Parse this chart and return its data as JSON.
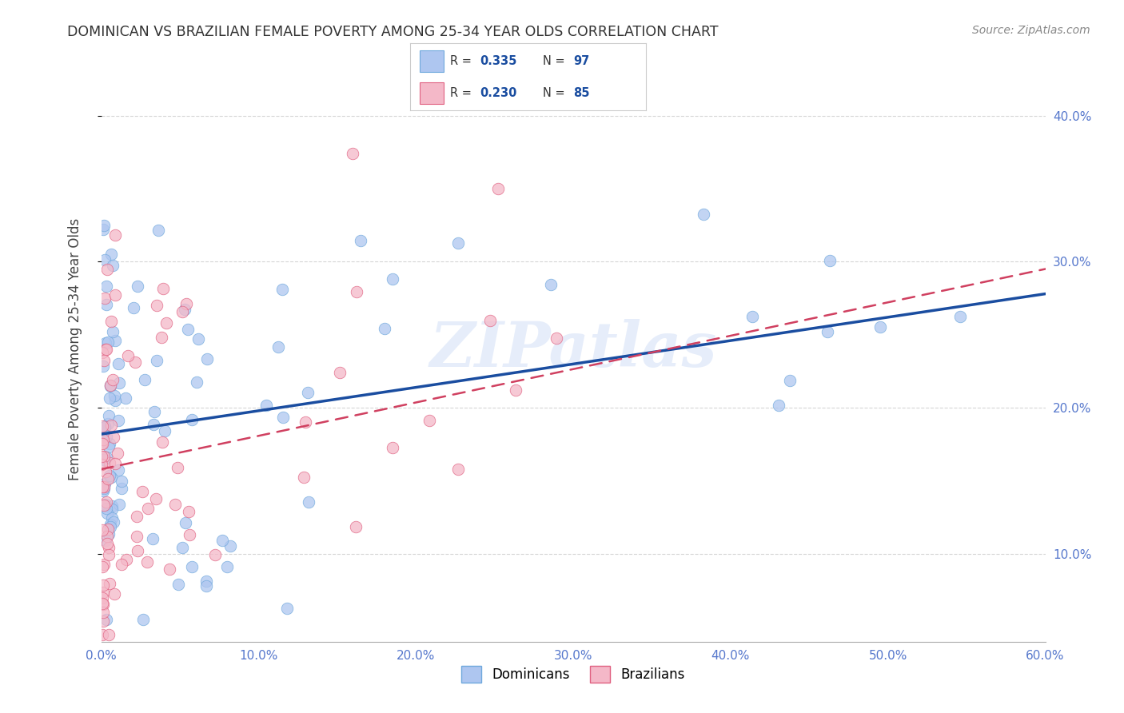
{
  "title": "DOMINICAN VS BRAZILIAN FEMALE POVERTY AMONG 25-34 YEAR OLDS CORRELATION CHART",
  "source": "Source: ZipAtlas.com",
  "ylabel": "Female Poverty Among 25-34 Year Olds",
  "xlim": [
    0.0,
    0.6
  ],
  "ylim": [
    0.04,
    0.44
  ],
  "xticks": [
    0.0,
    0.1,
    0.2,
    0.3,
    0.4,
    0.5,
    0.6
  ],
  "yticks": [
    0.1,
    0.2,
    0.3,
    0.4
  ],
  "ytick_labels": [
    "10.0%",
    "20.0%",
    "30.0%",
    "40.0%"
  ],
  "xtick_labels": [
    "0.0%",
    "10.0%",
    "20.0%",
    "30.0%",
    "40.0%",
    "50.0%",
    "60.0%"
  ],
  "dominican_color": "#aec6f0",
  "dominican_edge": "#6fa8dc",
  "brazilian_color": "#f4b8c8",
  "brazilian_edge": "#e06080",
  "trend_dominican_color": "#1a4da0",
  "trend_brazilian_color": "#d04060",
  "R_dominican": 0.335,
  "N_dominican": 97,
  "R_brazilian": 0.23,
  "N_brazilian": 85,
  "watermark": "ZIPatlas",
  "legend_dominicans": "Dominicans",
  "legend_brazilians": "Brazilians",
  "background_color": "#ffffff",
  "grid_color": "#cccccc",
  "title_color": "#333333",
  "axis_label_color": "#444444",
  "tick_color": "#5577cc",
  "dom_trend_start_y": 0.182,
  "dom_trend_end_y": 0.278,
  "bra_trend_start_y": 0.158,
  "bra_trend_end_y": 0.295,
  "random_seed_dominican": 42,
  "random_seed_brazilian": 99
}
